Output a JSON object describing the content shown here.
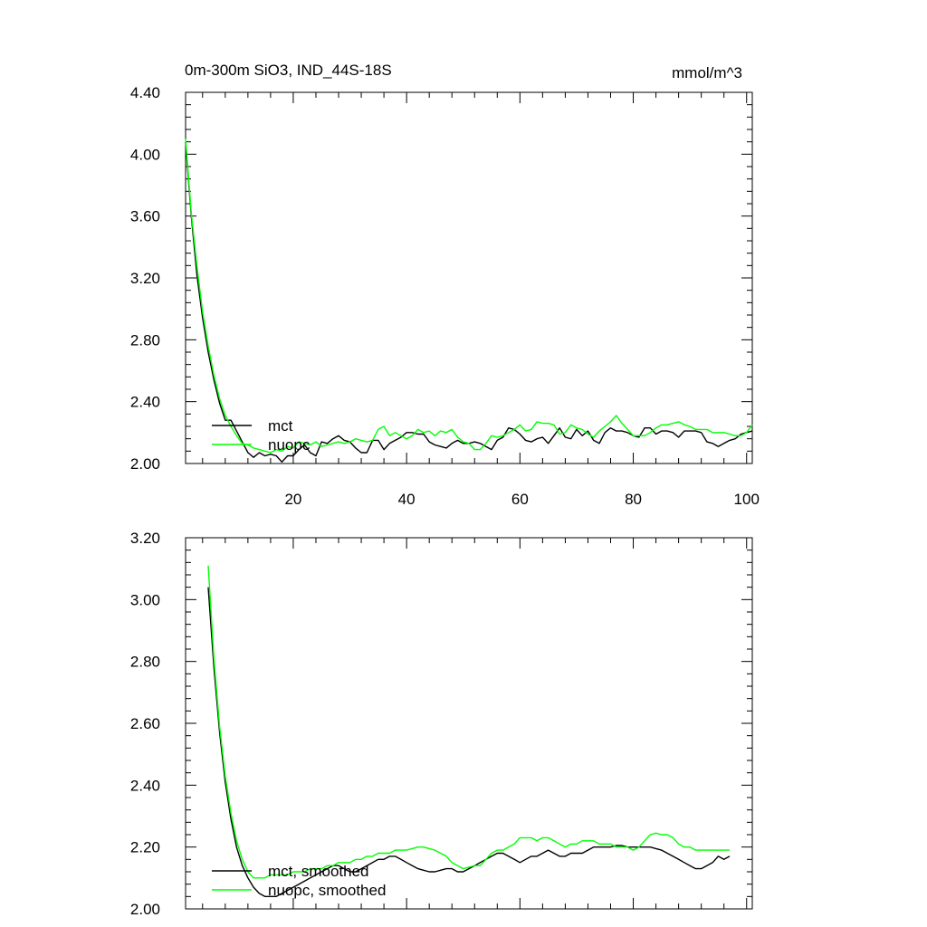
{
  "chart_data": [
    {
      "type": "line",
      "title": "0m-300m SiO3, IND_44S-18S",
      "units": "mmol/m^3",
      "xlim": [
        1,
        101
      ],
      "ylim": [
        2.0,
        4.4
      ],
      "yticks": [
        2.0,
        2.4,
        2.8,
        3.2,
        3.6,
        4.0,
        4.4
      ],
      "ytick_labels": [
        "2.00",
        "2.40",
        "2.80",
        "3.20",
        "3.60",
        "4.00",
        "4.40"
      ],
      "xticks": [
        20,
        40,
        60,
        80,
        100
      ],
      "xtick_labels": [
        "20",
        "40",
        "60",
        "80",
        "100"
      ],
      "legend_position": "bottom-left",
      "series": [
        {
          "name": "mct",
          "color": "#000000",
          "x": [
            1,
            2,
            3,
            4,
            5,
            6,
            7,
            8,
            9,
            10,
            11,
            12,
            13,
            14,
            15,
            16,
            17,
            18,
            19,
            20,
            21,
            22,
            23,
            24,
            25,
            26,
            27,
            28,
            29,
            30,
            31,
            32,
            33,
            34,
            35,
            36,
            37,
            38,
            39,
            40,
            41,
            42,
            43,
            44,
            45,
            46,
            47,
            48,
            49,
            50,
            51,
            52,
            53,
            54,
            55,
            56,
            57,
            58,
            59,
            60,
            61,
            62,
            63,
            64,
            65,
            66,
            67,
            68,
            69,
            70,
            71,
            72,
            73,
            74,
            75,
            76,
            77,
            78,
            79,
            80,
            81,
            82,
            83,
            84,
            85,
            86,
            87,
            88,
            89,
            90,
            91,
            92,
            93,
            94,
            95,
            96,
            97,
            98,
            99,
            100,
            101
          ],
          "y": [
            4.08,
            3.6,
            3.22,
            2.94,
            2.72,
            2.54,
            2.39,
            2.28,
            2.28,
            2.21,
            2.14,
            2.07,
            2.04,
            2.07,
            2.05,
            2.06,
            2.05,
            2.01,
            2.05,
            2.05,
            2.09,
            2.12,
            2.07,
            2.05,
            2.14,
            2.13,
            2.16,
            2.18,
            2.15,
            2.14,
            2.1,
            2.07,
            2.07,
            2.15,
            2.15,
            2.09,
            2.13,
            2.15,
            2.17,
            2.2,
            2.2,
            2.19,
            2.19,
            2.14,
            2.12,
            2.11,
            2.1,
            2.13,
            2.15,
            2.13,
            2.13,
            2.14,
            2.13,
            2.11,
            2.09,
            2.15,
            2.17,
            2.23,
            2.22,
            2.19,
            2.15,
            2.14,
            2.16,
            2.17,
            2.13,
            2.18,
            2.23,
            2.17,
            2.16,
            2.22,
            2.18,
            2.21,
            2.15,
            2.13,
            2.2,
            2.23,
            2.21,
            2.21,
            2.2,
            2.18,
            2.17,
            2.23,
            2.23,
            2.19,
            2.21,
            2.21,
            2.2,
            2.17,
            2.21,
            2.21,
            2.21,
            2.2,
            2.14,
            2.13,
            2.11,
            2.13,
            2.15,
            2.16,
            2.19,
            2.2,
            2.21
          ]
        },
        {
          "name": "nuopc",
          "color": "#00ff00",
          "x": [
            1,
            2,
            3,
            4,
            5,
            6,
            7,
            8,
            9,
            10,
            11,
            12,
            13,
            14,
            15,
            16,
            17,
            18,
            19,
            20,
            21,
            22,
            23,
            24,
            25,
            26,
            27,
            28,
            29,
            30,
            31,
            32,
            33,
            34,
            35,
            36,
            37,
            38,
            39,
            40,
            41,
            42,
            43,
            44,
            45,
            46,
            47,
            48,
            49,
            50,
            51,
            52,
            53,
            54,
            55,
            56,
            57,
            58,
            59,
            60,
            61,
            62,
            63,
            64,
            65,
            66,
            67,
            68,
            69,
            70,
            71,
            72,
            73,
            74,
            75,
            76,
            77,
            78,
            79,
            80,
            81,
            82,
            83,
            84,
            85,
            86,
            87,
            88,
            89,
            90,
            91,
            92,
            93,
            94,
            95,
            96,
            97,
            98,
            99,
            100,
            101
          ],
          "y": [
            4.1,
            3.62,
            3.28,
            2.98,
            2.76,
            2.57,
            2.42,
            2.31,
            2.24,
            2.18,
            2.13,
            2.12,
            2.1,
            2.09,
            2.08,
            2.07,
            2.09,
            2.08,
            2.11,
            2.1,
            2.14,
            2.13,
            2.12,
            2.14,
            2.11,
            2.12,
            2.13,
            2.14,
            2.13,
            2.14,
            2.16,
            2.15,
            2.14,
            2.15,
            2.22,
            2.24,
            2.18,
            2.2,
            2.18,
            2.16,
            2.18,
            2.22,
            2.2,
            2.21,
            2.18,
            2.21,
            2.2,
            2.22,
            2.17,
            2.14,
            2.13,
            2.09,
            2.09,
            2.13,
            2.18,
            2.17,
            2.18,
            2.2,
            2.22,
            2.25,
            2.21,
            2.22,
            2.27,
            2.26,
            2.26,
            2.25,
            2.19,
            2.2,
            2.25,
            2.23,
            2.22,
            2.19,
            2.17,
            2.21,
            2.24,
            2.27,
            2.31,
            2.26,
            2.22,
            2.18,
            2.18,
            2.18,
            2.2,
            2.23,
            2.25,
            2.25,
            2.26,
            2.27,
            2.25,
            2.24,
            2.22,
            2.22,
            2.22,
            2.2,
            2.2,
            2.2,
            2.19,
            2.18,
            2.18,
            2.2,
            2.25
          ]
        }
      ]
    },
    {
      "type": "line",
      "xlim": [
        1,
        101
      ],
      "ylim": [
        2.0,
        3.2
      ],
      "yticks": [
        2.0,
        2.2,
        2.4,
        2.6,
        2.8,
        3.0,
        3.2
      ],
      "ytick_labels": [
        "2.00",
        "2.20",
        "2.40",
        "2.60",
        "2.80",
        "3.00",
        "3.20"
      ],
      "xticks": [
        20,
        40,
        60,
        80,
        100
      ],
      "legend_position": "bottom-left",
      "series": [
        {
          "name": "mct, smoothed",
          "color": "#000000",
          "x": [
            5,
            6,
            7,
            8,
            9,
            10,
            11,
            12,
            13,
            14,
            15,
            16,
            17,
            18,
            19,
            20,
            21,
            22,
            23,
            24,
            25,
            26,
            27,
            28,
            29,
            30,
            31,
            32,
            33,
            34,
            35,
            36,
            37,
            38,
            39,
            40,
            41,
            42,
            43,
            44,
            45,
            46,
            47,
            48,
            49,
            50,
            51,
            52,
            53,
            54,
            55,
            56,
            57,
            58,
            59,
            60,
            61,
            62,
            63,
            64,
            65,
            66,
            67,
            68,
            69,
            70,
            71,
            72,
            73,
            74,
            75,
            76,
            77,
            78,
            79,
            80,
            81,
            82,
            83,
            84,
            85,
            86,
            87,
            88,
            89,
            90,
            91,
            92,
            93,
            94,
            95,
            96,
            97
          ],
          "y": [
            3.04,
            2.78,
            2.57,
            2.41,
            2.29,
            2.2,
            2.14,
            2.1,
            2.07,
            2.05,
            2.04,
            2.04,
            2.04,
            2.05,
            2.06,
            2.07,
            2.08,
            2.09,
            2.1,
            2.11,
            2.12,
            2.13,
            2.14,
            2.14,
            2.13,
            2.12,
            2.12,
            2.13,
            2.14,
            2.15,
            2.16,
            2.16,
            2.17,
            2.17,
            2.16,
            2.15,
            2.14,
            2.13,
            2.125,
            2.12,
            2.12,
            2.125,
            2.13,
            2.13,
            2.12,
            2.12,
            2.13,
            2.14,
            2.15,
            2.16,
            2.17,
            2.18,
            2.18,
            2.17,
            2.16,
            2.15,
            2.16,
            2.17,
            2.17,
            2.18,
            2.19,
            2.18,
            2.17,
            2.17,
            2.18,
            2.18,
            2.18,
            2.19,
            2.2,
            2.2,
            2.2,
            2.2,
            2.205,
            2.205,
            2.2,
            2.2,
            2.2,
            2.2,
            2.2,
            2.195,
            2.19,
            2.18,
            2.17,
            2.16,
            2.15,
            2.14,
            2.13,
            2.13,
            2.14,
            2.15,
            2.17,
            2.16,
            2.17
          ]
        },
        {
          "name": "nuopc, smoothed",
          "color": "#00ff00",
          "x": [
            5,
            6,
            7,
            8,
            9,
            10,
            11,
            12,
            13,
            14,
            15,
            16,
            17,
            18,
            19,
            20,
            21,
            22,
            23,
            24,
            25,
            26,
            27,
            28,
            29,
            30,
            31,
            32,
            33,
            34,
            35,
            36,
            37,
            38,
            39,
            40,
            41,
            42,
            43,
            44,
            45,
            46,
            47,
            48,
            49,
            50,
            51,
            52,
            53,
            54,
            55,
            56,
            57,
            58,
            59,
            60,
            61,
            62,
            63,
            64,
            65,
            66,
            67,
            68,
            69,
            70,
            71,
            72,
            73,
            74,
            75,
            76,
            77,
            78,
            79,
            80,
            81,
            82,
            83,
            84,
            85,
            86,
            87,
            88,
            89,
            90,
            91,
            92,
            93,
            94,
            95,
            96,
            97
          ],
          "y": [
            3.11,
            2.81,
            2.59,
            2.43,
            2.31,
            2.22,
            2.16,
            2.12,
            2.1,
            2.1,
            2.1,
            2.11,
            2.11,
            2.11,
            2.11,
            2.12,
            2.12,
            2.12,
            2.13,
            2.13,
            2.13,
            2.14,
            2.14,
            2.15,
            2.15,
            2.15,
            2.16,
            2.16,
            2.17,
            2.17,
            2.18,
            2.18,
            2.18,
            2.19,
            2.19,
            2.19,
            2.195,
            2.2,
            2.2,
            2.195,
            2.19,
            2.18,
            2.17,
            2.15,
            2.14,
            2.13,
            2.135,
            2.14,
            2.14,
            2.16,
            2.18,
            2.19,
            2.19,
            2.2,
            2.21,
            2.23,
            2.23,
            2.23,
            2.22,
            2.23,
            2.23,
            2.22,
            2.21,
            2.2,
            2.21,
            2.21,
            2.22,
            2.22,
            2.22,
            2.21,
            2.21,
            2.21,
            2.2,
            2.2,
            2.2,
            2.19,
            2.2,
            2.22,
            2.24,
            2.245,
            2.24,
            2.24,
            2.23,
            2.21,
            2.2,
            2.2,
            2.19,
            2.19,
            2.19,
            2.19,
            2.19,
            2.19,
            2.19
          ]
        }
      ]
    }
  ]
}
